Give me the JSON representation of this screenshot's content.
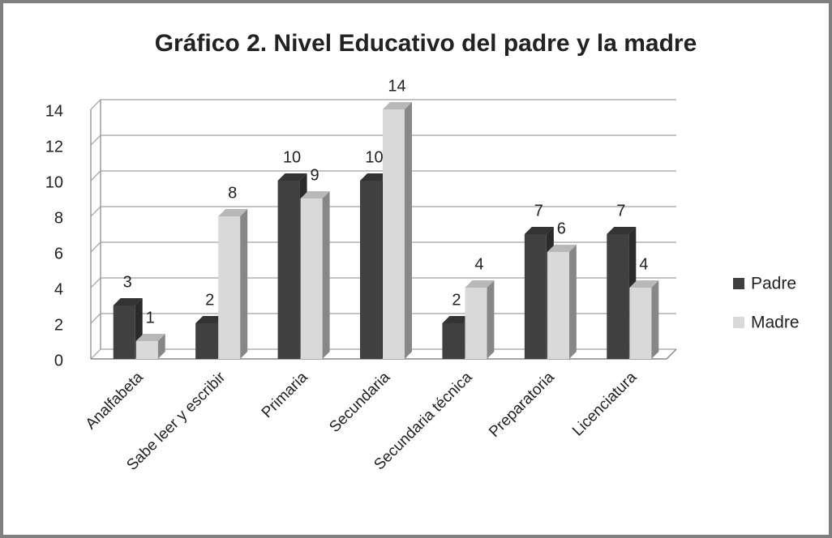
{
  "chart_data": {
    "type": "bar3d",
    "title": "Gráfico 2. Nivel Educativo del padre y la madre",
    "categories": [
      "Analfabeta",
      "Sabe leer y escribir",
      "Primaria",
      "Secundaria",
      "Secundaria técnica",
      "Preparatoria",
      "Licenciatura"
    ],
    "series": [
      {
        "name": "Padre",
        "color": "#404040",
        "values": [
          3,
          2,
          10,
          10,
          2,
          7,
          7
        ]
      },
      {
        "name": "Madre",
        "color": "#d9d9d9",
        "values": [
          1,
          8,
          9,
          14,
          4,
          6,
          4
        ]
      }
    ],
    "ylim": [
      0,
      14
    ],
    "yticks": [
      0,
      2,
      4,
      6,
      8,
      10,
      12,
      14
    ],
    "grid": true,
    "legend": "right"
  }
}
